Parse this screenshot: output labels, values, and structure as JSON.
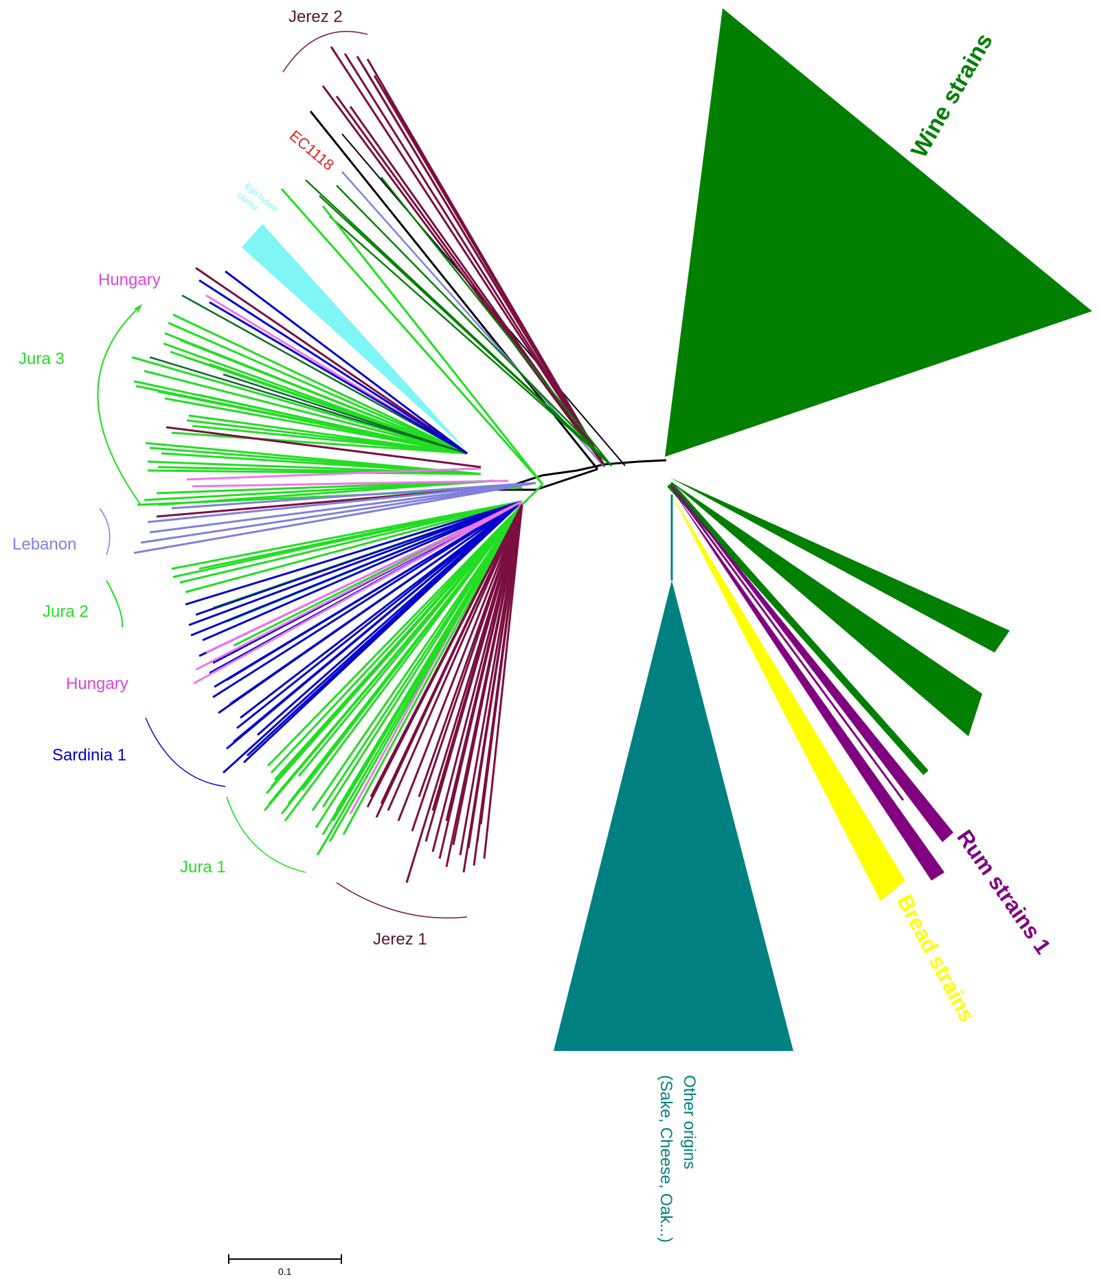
{
  "colors": {
    "wine": "#007f00",
    "teal": "#008080",
    "yellow": "#ffff00",
    "rum": "#800080",
    "jura": "#22dd22",
    "jerez": "#7a0f40",
    "sardinia": "#0000cc",
    "lebanon": "#8080dd",
    "hungary": "#ee77ee",
    "hybrid": "#7ff5f5",
    "ec1118": "#dd2222",
    "black": "#000000"
  },
  "labels": {
    "jerez2": "Jerez 2",
    "ec1118": "EC1118",
    "eg8_line1": "Eg8 hybrid",
    "eg8_line2": "cluster",
    "hungary_top": "Hungary",
    "jura3": "Jura 3",
    "lebanon": "Lebanon",
    "jura2": "Jura 2",
    "hungary_bottom": "Hungary",
    "sardinia1": "Sardinia 1",
    "jura1": "Jura 1",
    "jerez1": "Jerez 1",
    "wine": "Wine strains",
    "rum": "Rum strains 1",
    "bread": "Bread strains",
    "other_line1": "Other origins",
    "other_line2": "(Sake, Cheese, Oak...)"
  },
  "scale": {
    "label": "0.1"
  }
}
